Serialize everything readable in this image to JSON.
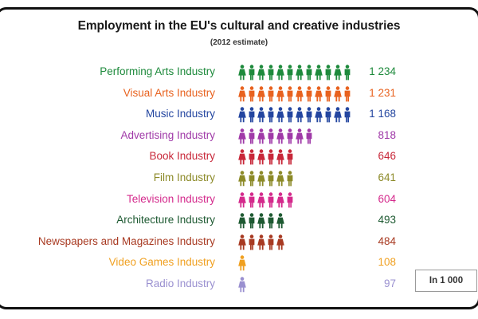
{
  "title": "Employment in the EU's cultural and creative industries",
  "subtitle": "(2012 estimate)",
  "unit_label": "In 1 000",
  "rows": [
    {
      "label": "Performing Arts Industry",
      "value": "1 234",
      "icons": 12,
      "color": "#1e8a3c"
    },
    {
      "label": "Visual Arts Industry",
      "value": "1 231",
      "icons": 12,
      "color": "#e8621f"
    },
    {
      "label": "Music Industry",
      "value": "1 168",
      "icons": 12,
      "color": "#2446a0"
    },
    {
      "label": "Advertising Industry",
      "value": "818",
      "icons": 8,
      "color": "#a03aa8"
    },
    {
      "label": "Book Industry",
      "value": "646",
      "icons": 6,
      "color": "#c8283a"
    },
    {
      "label": "Film Industry",
      "value": "641",
      "icons": 6,
      "color": "#8c8a28"
    },
    {
      "label": "Television Industry",
      "value": "604",
      "icons": 6,
      "color": "#d42a8c"
    },
    {
      "label": "Architecture Industry",
      "value": "493",
      "icons": 5,
      "color": "#1e5a32"
    },
    {
      "label": "Newspapers and Magazines Industry",
      "value": "484",
      "icons": 5,
      "color": "#a83a22"
    },
    {
      "label": "Video Games Industry",
      "value": "108",
      "icons": 1,
      "color": "#f0a020"
    },
    {
      "label": "Radio Industry",
      "value": "97",
      "icons": 1,
      "color": "#9a90d0"
    }
  ],
  "chart_data": {
    "type": "bar",
    "title": "Employment in the EU's cultural and creative industries",
    "subtitle": "(2012 estimate)",
    "unit": "In 1 000",
    "style": "pictogram (each person icon ≈ 100 000 employees)",
    "orientation": "horizontal",
    "categories": [
      "Performing Arts Industry",
      "Visual Arts Industry",
      "Music Industry",
      "Advertising Industry",
      "Book Industry",
      "Film Industry",
      "Television Industry",
      "Architecture Industry",
      "Newspapers and Magazines Industry",
      "Video Games Industry",
      "Radio Industry"
    ],
    "values": [
      1234,
      1231,
      1168,
      818,
      646,
      641,
      604,
      493,
      484,
      108,
      97
    ],
    "icon_counts": [
      12,
      12,
      12,
      8,
      6,
      6,
      6,
      5,
      5,
      1,
      1
    ],
    "xlabel": "",
    "ylabel": "",
    "grid": false,
    "legend": "none"
  }
}
